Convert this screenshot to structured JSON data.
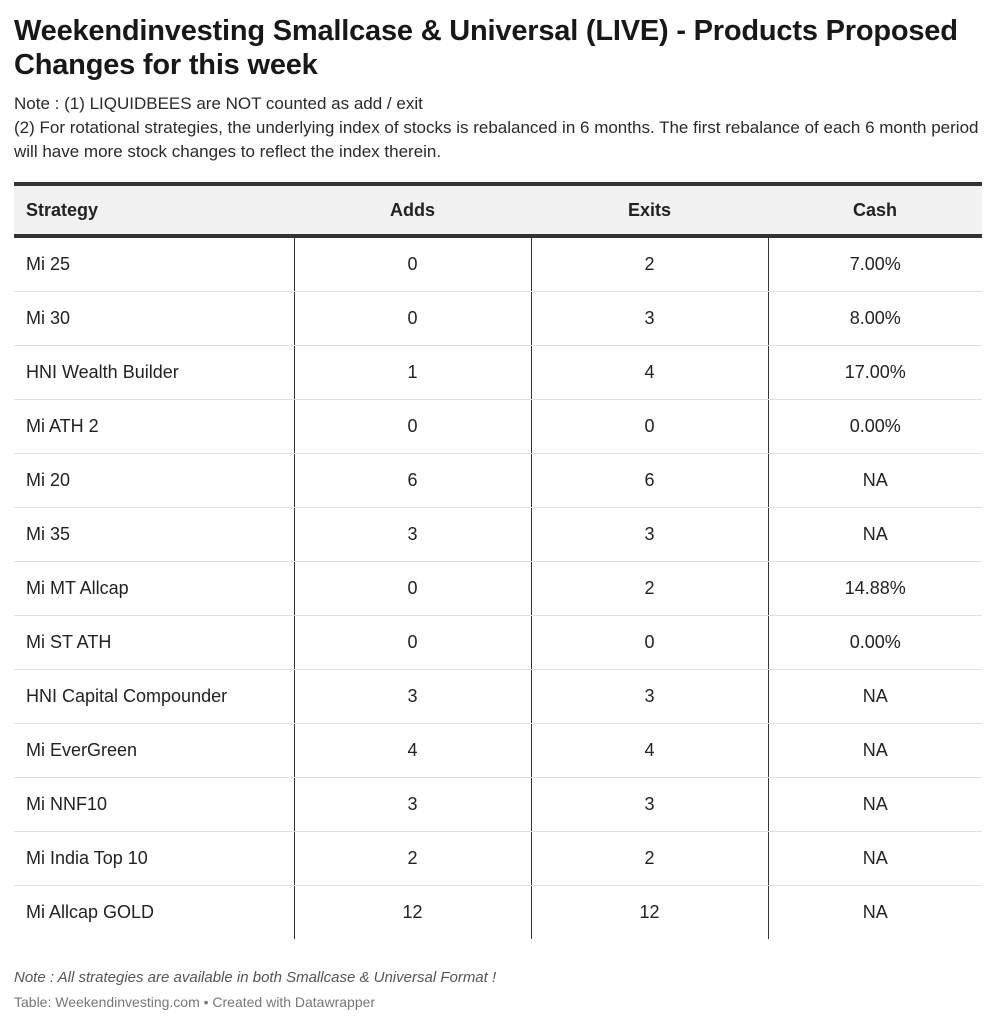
{
  "title": "Weekendinvesting Smallcase & Universal (LIVE) - Products Proposed Changes for this week",
  "notes": [
    "Note : (1) LIQUIDBEES are NOT counted as add / exit",
    "(2) For rotational strategies, the underlying index of stocks is rebalanced in 6 months. The first rebalance of each 6 month period will have more stock changes to reflect the index therein."
  ],
  "table": {
    "headers": [
      "Strategy",
      "Adds",
      "Exits",
      "Cash"
    ],
    "rows": [
      [
        "Mi 25",
        "0",
        "2",
        "7.00%"
      ],
      [
        "Mi 30",
        "0",
        "3",
        "8.00%"
      ],
      [
        "HNI Wealth Builder",
        "1",
        "4",
        "17.00%"
      ],
      [
        "Mi ATH 2",
        "0",
        "0",
        "0.00%"
      ],
      [
        "Mi 20",
        "6",
        "6",
        "NA"
      ],
      [
        "Mi 35",
        "3",
        "3",
        "NA"
      ],
      [
        "Mi MT Allcap",
        "0",
        "2",
        "14.88%"
      ],
      [
        "Mi ST ATH",
        "0",
        "0",
        "0.00%"
      ],
      [
        "HNI Capital Compounder",
        "3",
        "3",
        "NA"
      ],
      [
        "Mi EverGreen",
        "4",
        "4",
        "NA"
      ],
      [
        "Mi NNF10",
        "3",
        "3",
        "NA"
      ],
      [
        "Mi India Top 10",
        "2",
        "2",
        "NA"
      ],
      [
        "Mi Allcap GOLD",
        "12",
        "12",
        "NA"
      ]
    ]
  },
  "footer": {
    "note": "Note : All strategies are available in both Smallcase & Universal Format !",
    "credit": "Table: Weekendinvesting.com • Created with Datawrapper"
  }
}
